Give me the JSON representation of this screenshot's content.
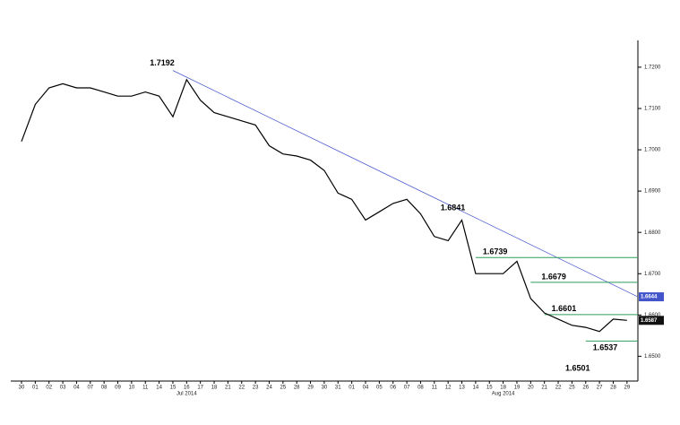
{
  "chart_data": {
    "type": "line",
    "categories": [
      "30",
      "01",
      "02",
      "03",
      "04",
      "07",
      "08",
      "09",
      "10",
      "11",
      "14",
      "15",
      "16",
      "17",
      "18",
      "21",
      "22",
      "23",
      "24",
      "25",
      "28",
      "29",
      "30",
      "31",
      "01",
      "04",
      "05",
      "06",
      "07",
      "08",
      "11",
      "12",
      "13",
      "14",
      "15",
      "18",
      "19",
      "20",
      "21",
      "22",
      "25",
      "26",
      "27",
      "28",
      "29"
    ],
    "month_labels": [
      "Jul 2014",
      "Aug 2014"
    ],
    "series": [
      {
        "color": "#000000",
        "values": [
          1.702,
          1.711,
          1.715,
          1.716,
          1.715,
          1.715,
          1.714,
          1.713,
          1.713,
          1.714,
          1.713,
          1.708,
          1.717,
          1.712,
          1.709,
          1.708,
          1.707,
          1.706,
          1.701,
          1.699,
          1.6985,
          1.6975,
          1.695,
          1.6895,
          1.688,
          1.683,
          1.685,
          1.687,
          1.688,
          1.6845,
          1.679,
          1.678,
          1.683,
          1.67,
          1.67,
          1.67,
          1.673,
          1.664,
          1.6605,
          1.659,
          1.6575,
          1.657,
          1.656,
          1.659,
          1.6587
        ]
      }
    ],
    "ylim": [
      1.644,
      1.7265
    ],
    "yticks": [
      {
        "value": 1.72,
        "label": "1.7200"
      },
      {
        "value": 1.71,
        "label": "1.7100"
      },
      {
        "value": 1.7,
        "label": "1.7000"
      },
      {
        "value": 1.69,
        "label": "1.6900"
      },
      {
        "value": 1.68,
        "label": "1.6800"
      },
      {
        "value": 1.67,
        "label": "1.6700"
      },
      {
        "value": 1.66,
        "label": "1.6600"
      },
      {
        "value": 1.65,
        "label": "1.6500"
      }
    ],
    "annotations": [
      1.7192,
      1.6841,
      1.6739,
      1.6679,
      1.6601,
      1.6537,
      1.6501
    ],
    "trendline_price": 1.6644,
    "last_price": 1.6587,
    "trendline_color": "#4455cc",
    "level_color": "#2e9e5a"
  }
}
